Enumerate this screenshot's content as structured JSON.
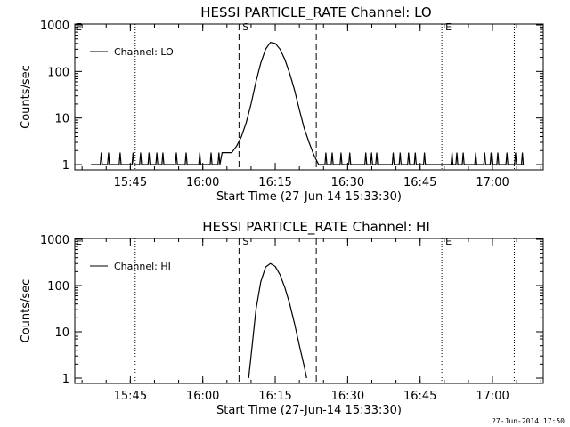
{
  "footer": {
    "timestamp": "27-Jun-2014 17:50"
  },
  "chart_data": [
    {
      "type": "line",
      "title": "HESSI PARTICLE_RATE Channel: LO",
      "xlabel": "Start Time (27-Jun-14 15:33:30)",
      "ylabel": "Counts/sec",
      "yscale": "log",
      "ylim": [
        1,
        1000
      ],
      "xlim": [
        "15:33:30",
        "17:10:30"
      ],
      "x_ticks": [
        "15:45",
        "16:00",
        "16:15",
        "16:30",
        "16:45",
        "17:00"
      ],
      "y_ticks": [
        "1",
        "10",
        "100",
        "1000"
      ],
      "legend": {
        "position": "top-left",
        "entries": [
          "Channel: LO"
        ]
      },
      "markers": [
        {
          "label": "",
          "time": "15:46:00",
          "style": "dotted"
        },
        {
          "label": "S",
          "time": "16:07:30",
          "style": "dashed"
        },
        {
          "label": "",
          "time": "16:23:30",
          "style": "dashed"
        },
        {
          "label": "E",
          "time": "16:49:30",
          "style": "dotted"
        },
        {
          "label": "",
          "time": "17:04:30",
          "style": "dotted"
        }
      ],
      "series": [
        {
          "name": "Channel: LO",
          "x": [
            "16:04:00",
            "16:06:00",
            "16:07:00",
            "16:08:00",
            "16:09:00",
            "16:10:00",
            "16:11:00",
            "16:12:00",
            "16:13:00",
            "16:14:00",
            "16:15:00",
            "16:16:00",
            "16:17:00",
            "16:18:00",
            "16:19:00",
            "16:20:00",
            "16:21:00",
            "16:22:00",
            "16:23:00",
            "16:24:00"
          ],
          "y": [
            1.8,
            1.8,
            2.5,
            4,
            8,
            20,
            60,
            150,
            300,
            420,
            400,
            300,
            180,
            90,
            40,
            15,
            6,
            3,
            1.6,
            1
          ],
          "background_fluctuation": "1-2 counts/sec outside the event"
        }
      ]
    },
    {
      "type": "line",
      "title": "HESSI PARTICLE_RATE Channel: HI",
      "xlabel": "Start Time (27-Jun-14 15:33:30)",
      "ylabel": "Counts/sec",
      "yscale": "log",
      "ylim": [
        1,
        1000
      ],
      "xlim": [
        "15:33:30",
        "17:10:30"
      ],
      "x_ticks": [
        "15:45",
        "16:00",
        "16:15",
        "16:30",
        "16:45",
        "17:00"
      ],
      "y_ticks": [
        "1",
        "10",
        "100",
        "1000"
      ],
      "legend": {
        "position": "top-left",
        "entries": [
          "Channel: HI"
        ]
      },
      "markers": [
        {
          "label": "",
          "time": "15:46:00",
          "style": "dotted"
        },
        {
          "label": "S",
          "time": "16:07:30",
          "style": "dashed"
        },
        {
          "label": "",
          "time": "16:23:30",
          "style": "dashed"
        },
        {
          "label": "E",
          "time": "16:49:30",
          "style": "dotted"
        },
        {
          "label": "",
          "time": "17:04:30",
          "style": "dotted"
        }
      ],
      "series": [
        {
          "name": "Channel: HI",
          "x": [
            "16:09:30",
            "16:10:00",
            "16:11:00",
            "16:12:00",
            "16:13:00",
            "16:14:00",
            "16:15:00",
            "16:16:00",
            "16:17:00",
            "16:18:00",
            "16:19:00",
            "16:20:00",
            "16:21:00",
            "16:21:30"
          ],
          "y": [
            1,
            3,
            30,
            120,
            250,
            300,
            260,
            170,
            90,
            40,
            15,
            5,
            1.8,
            1
          ]
        }
      ]
    }
  ]
}
